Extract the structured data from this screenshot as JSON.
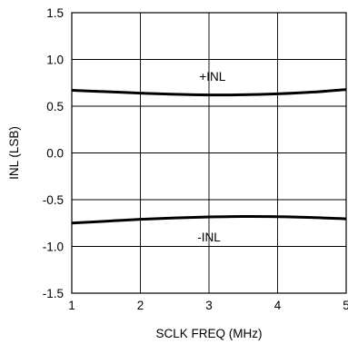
{
  "chart_data": {
    "type": "line",
    "title": "",
    "xlabel": "SCLK FREQ (MHz)",
    "ylabel": "INL (LSB)",
    "xlim": [
      1,
      5
    ],
    "ylim": [
      -1.5,
      1.5
    ],
    "grid": true,
    "legend": "none",
    "xticks": [
      "1",
      "2",
      "3",
      "4",
      "5"
    ],
    "xtick_values": [
      1,
      2,
      3,
      4,
      5
    ],
    "yticks": [
      "1.5",
      "1.0",
      "0.5",
      "0.0",
      "-0.5",
      "-1.0",
      "-1.5"
    ],
    "ytick_values": [
      1.5,
      1.0,
      0.5,
      0.0,
      -0.5,
      -1.0,
      -1.5
    ],
    "series": [
      {
        "name": "+INL",
        "x": [
          1,
          1.5,
          2,
          2.5,
          3,
          3.5,
          4,
          4.5,
          5
        ],
        "y": [
          0.67,
          0.655,
          0.64,
          0.627,
          0.62,
          0.622,
          0.632,
          0.65,
          0.678
        ]
      },
      {
        "name": "-INL",
        "x": [
          1,
          1.5,
          2,
          2.5,
          3,
          3.5,
          4,
          4.5,
          5
        ],
        "y": [
          -0.75,
          -0.73,
          -0.71,
          -0.695,
          -0.685,
          -0.68,
          -0.682,
          -0.69,
          -0.705
        ]
      }
    ],
    "annotations": [
      "+INL",
      "-INL"
    ],
    "line_color": "#000000",
    "grid_color": "#000000"
  }
}
